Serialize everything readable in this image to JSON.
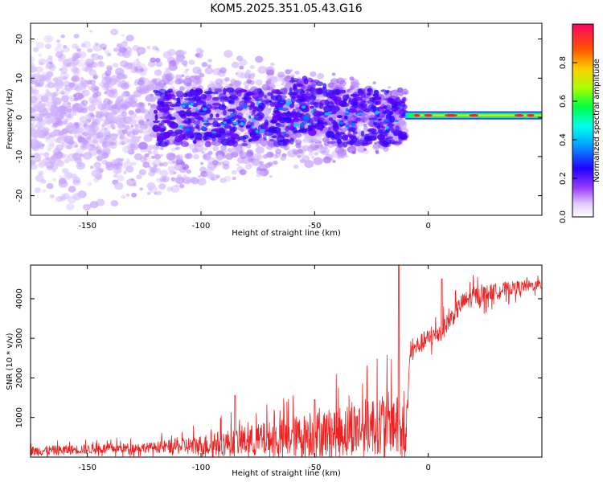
{
  "title": "KOM5.2025.351.05.43.G16",
  "chart_data": [
    {
      "type": "heatmap",
      "name": "spectrogram",
      "xlabel": "Height of straight line (km)",
      "ylabel": "Frequency (Hz)",
      "xlim": [
        -175,
        50
      ],
      "ylim": [
        -25,
        24
      ],
      "xticks": [
        -150,
        -100,
        -50,
        0
      ],
      "yticks": [
        -20,
        -10,
        0,
        10,
        20
      ],
      "carrier": {
        "from_km": -10,
        "to_km": 50,
        "frequency_hz": 0.5
      },
      "colorbar": {
        "label": "Normalized spectral amplitude",
        "range": [
          0,
          1
        ],
        "ticks": [
          "0.0",
          "0.2",
          "0.4",
          "0.6",
          "0.8"
        ]
      }
    },
    {
      "type": "line",
      "name": "snr",
      "xlabel": "Height of straight line (km)",
      "ylabel": "SNR (10 * v/v)",
      "xlim": [
        -175,
        50
      ],
      "ylim": [
        0,
        4850
      ],
      "xticks": [
        -150,
        -100,
        -50,
        0
      ],
      "yticks": [
        1000,
        2000,
        3000,
        4000
      ],
      "color": "#ee2222",
      "trend": {
        "x": [
          -175,
          -150,
          -120,
          -100,
          -80,
          -60,
          -40,
          -25,
          -15,
          -10,
          -8,
          -5,
          0,
          5,
          10,
          15,
          20,
          30,
          40,
          50
        ],
        "y": [
          150,
          200,
          250,
          300,
          400,
          500,
          650,
          800,
          900,
          300,
          2600,
          2800,
          3000,
          3150,
          3500,
          3900,
          4050,
          4200,
          4300,
          4350
        ]
      },
      "spikes": [
        {
          "x": -13,
          "y": 4850
        },
        {
          "x": 6,
          "y": 4500
        },
        {
          "x": -85,
          "y": 1560
        },
        {
          "x": -50,
          "y": 1450
        }
      ]
    }
  ]
}
